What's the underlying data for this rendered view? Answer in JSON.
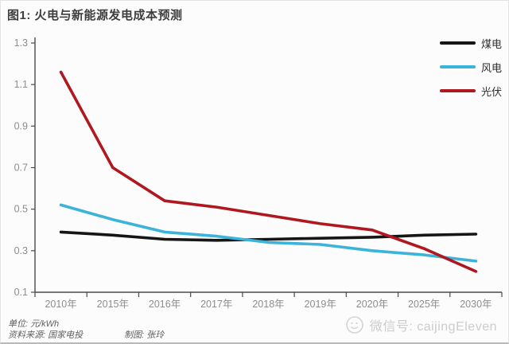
{
  "page": {
    "title": "图1: 火电与新能源发电成本预测",
    "footer": {
      "unit_label": "单位: 元/kWh",
      "source_label": "资料来源: 国家电投",
      "author_label": "制图: 张玲"
    },
    "watermark": {
      "icon": "wechat-icon",
      "text": "微信号: caijingEleven"
    }
  },
  "colors": {
    "axis": "#4a4a4a",
    "tick_label": "#8d8d8d",
    "background": "#fcfcfc",
    "coal": "#161616",
    "wind": "#3bb3da",
    "solar": "#b0181f",
    "watermark": "#cccccc"
  },
  "chart_data": {
    "type": "line",
    "title": "图1: 火电与新能源发电成本预测",
    "xlabel": "",
    "ylabel": "单位: 元/kWh",
    "categories": [
      "2010年",
      "2015年",
      "2016年",
      "2017年",
      "2018年",
      "2019年",
      "2020年",
      "2025年",
      "2030年"
    ],
    "series": [
      {
        "name": "煤电",
        "color": "#161616",
        "values": [
          0.39,
          0.375,
          0.355,
          0.35,
          0.355,
          0.36,
          0.365,
          0.375,
          0.38
        ]
      },
      {
        "name": "风电",
        "color": "#3bb3da",
        "values": [
          0.52,
          0.45,
          0.39,
          0.37,
          0.34,
          0.33,
          0.3,
          0.28,
          0.25
        ]
      },
      {
        "name": "光伏",
        "color": "#b0181f",
        "values": [
          1.16,
          0.7,
          0.54,
          0.51,
          0.47,
          0.43,
          0.4,
          0.31,
          0.2
        ]
      }
    ],
    "ylim": [
      0.1,
      1.3
    ],
    "y_ticks": [
      1.3,
      1.1,
      0.9,
      0.7,
      0.5,
      0.3,
      0.1
    ],
    "grid": false,
    "legend_position": "top-right"
  }
}
